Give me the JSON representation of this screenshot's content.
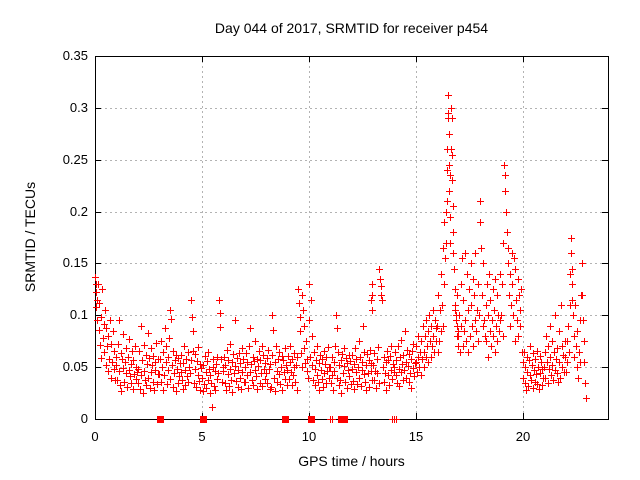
{
  "chart_data": {
    "type": "scatter",
    "title": "Day 044 of 2017, SRMTID for receiver p454",
    "xlabel": "GPS time / hours",
    "ylabel": "SRMTID / TECUs",
    "xlim": [
      0,
      24
    ],
    "ylim": [
      0,
      0.35
    ],
    "xticks": [
      0,
      5,
      10,
      15,
      20
    ],
    "yticks": [
      0,
      0.05,
      0.1,
      0.15,
      0.2,
      0.25,
      0.3,
      0.35
    ],
    "xtick_labels": [
      "0",
      "5",
      "10",
      "15",
      "20"
    ],
    "ytick_labels": [
      "0",
      "0.05",
      "0.1",
      "0.15",
      "0.2",
      "0.25",
      "0.3",
      "0.35"
    ],
    "grid": true,
    "legend": "none",
    "marker": "plus",
    "marker_color": "#ff0000",
    "grid_color": "#b3b3b3",
    "border_color": "#000000",
    "x_offsets": [
      0,
      0.03,
      0.07,
      0.1,
      0.13,
      0.17,
      0.2,
      0.23,
      0.27,
      0.3,
      0.33,
      0.37,
      0.4,
      0.43,
      0.47,
      0.5,
      0.53,
      0.57,
      0.6,
      0.63,
      0.67,
      0.7,
      0.73,
      0.77,
      0.8,
      0.83,
      0.87,
      0.9,
      0.93,
      0.97
    ],
    "hourly_y": {
      "0": [
        0.137,
        0.122,
        0.108,
        0.095,
        0.13,
        0.086,
        0.112,
        0.071,
        0.098,
        0.059,
        0.125,
        0.078,
        0.092,
        0.065,
        0.105,
        0.052,
        0.088,
        0.07,
        0.046,
        0.08,
        0.058,
        0.095,
        0.04,
        0.072,
        0.055,
        0.085,
        0.048,
        0.066,
        0.038,
        0.06
      ],
      "1": [
        0.052,
        0.038,
        0.072,
        0.046,
        0.095,
        0.033,
        0.064,
        0.027,
        0.058,
        0.049,
        0.082,
        0.036,
        0.055,
        0.044,
        0.068,
        0.031,
        0.06,
        0.047,
        0.077,
        0.041,
        0.053,
        0.035,
        0.066,
        0.029,
        0.057,
        0.043,
        0.07,
        0.039,
        0.05,
        0.045
      ],
      "2": [
        0.048,
        0.035,
        0.066,
        0.029,
        0.09,
        0.042,
        0.057,
        0.025,
        0.071,
        0.046,
        0.038,
        0.062,
        0.033,
        0.053,
        0.083,
        0.04,
        0.059,
        0.03,
        0.068,
        0.045,
        0.052,
        0.036,
        0.061,
        0.028,
        0.055,
        0.047,
        0.073,
        0.034,
        0.058,
        0.043
      ],
      "3": [
        0.043,
        0.058,
        0.036,
        0.075,
        0.05,
        0.028,
        0.065,
        0.042,
        0.088,
        0.055,
        0.07,
        0.034,
        0.06,
        0.047,
        0.078,
        0.039,
        0.105,
        0.096,
        0.052,
        0.031,
        0.066,
        0.044,
        0.057,
        0.027,
        0.062,
        0.048,
        0.035,
        0.059,
        0.041,
        0.054
      ],
      "4": [
        0.045,
        0.062,
        0.038,
        0.054,
        0.029,
        0.07,
        0.047,
        0.033,
        0.058,
        0.041,
        0.065,
        0.036,
        0.05,
        0.044,
        0.057,
        0.115,
        0.098,
        0.085,
        0.066,
        0.035,
        0.063,
        0.048,
        0.031,
        0.056,
        0.042,
        0.069,
        0.037,
        0.053,
        0.028,
        0.049
      ],
      "5": [
        0.04,
        0.027,
        0.052,
        0.034,
        0.061,
        0.045,
        0.03,
        0.056,
        0.038,
        0.065,
        0.048,
        0.025,
        0.042,
        0.035,
        0.012,
        0.05,
        0.058,
        0.032,
        0.046,
        0.028,
        0.053,
        0.039,
        0.06,
        0.044,
        0.115,
        0.102,
        0.089,
        0.058,
        0.036,
        0.05
      ],
      "6": [
        0.046,
        0.06,
        0.035,
        0.052,
        0.028,
        0.067,
        0.043,
        0.057,
        0.032,
        0.048,
        0.072,
        0.038,
        0.055,
        0.026,
        0.063,
        0.044,
        0.095,
        0.051,
        0.037,
        0.059,
        0.047,
        0.031,
        0.064,
        0.04,
        0.054,
        0.029,
        0.068,
        0.045,
        0.058,
        0.036
      ],
      "7": [
        0.05,
        0.036,
        0.064,
        0.042,
        0.055,
        0.03,
        0.07,
        0.045,
        0.088,
        0.053,
        0.038,
        0.06,
        0.033,
        0.056,
        0.047,
        0.075,
        0.041,
        0.058,
        0.029,
        0.051,
        0.066,
        0.035,
        0.057,
        0.044,
        0.07,
        0.032,
        0.062,
        0.048,
        0.039,
        0.054
      ],
      "8": [
        0.044,
        0.059,
        0.035,
        0.067,
        0.048,
        0.029,
        0.053,
        0.031,
        0.062,
        0.1,
        0.086,
        0.04,
        0.055,
        0.027,
        0.07,
        0.046,
        0.036,
        0.058,
        0.043,
        0.065,
        0.034,
        0.05,
        0.061,
        0.028,
        0.057,
        0.045,
        0.068,
        0.039,
        0.052,
        0.033
      ],
      "9": [
        0.047,
        0.061,
        0.039,
        0.055,
        0.07,
        0.045,
        0.033,
        0.058,
        0.042,
        0.05,
        0.064,
        0.036,
        0.052,
        0.028,
        0.06,
        0.125,
        0.112,
        0.098,
        0.085,
        0.064,
        0.05,
        0.12,
        0.105,
        0.09,
        0.068,
        0.054,
        0.075,
        0.046,
        0.058,
        0.04
      ],
      "10": [
        0.13,
        0.095,
        0.06,
        0.115,
        0.08,
        0.052,
        0.038,
        0.065,
        0.048,
        0.033,
        0.057,
        0.042,
        0.07,
        0.036,
        0.054,
        0.028,
        0.062,
        0.047,
        0.039,
        0.058,
        0.031,
        0.066,
        0.044,
        0.053,
        0.035,
        0.06,
        0.046,
        0.069,
        0.04,
        0.05
      ],
      "11": [
        0.05,
        0.035,
        0.06,
        0.042,
        0.028,
        0.055,
        0.046,
        0.07,
        0.1,
        0.088,
        0.04,
        0.065,
        0.033,
        0.052,
        0.038,
        0.057,
        0.025,
        0.063,
        0.044,
        0.051,
        0.068,
        0.036,
        0.059,
        0.03,
        0.054,
        0.047,
        0.062,
        0.041,
        0.056,
        0.034
      ],
      "12": [
        0.048,
        0.062,
        0.037,
        0.053,
        0.029,
        0.068,
        0.045,
        0.058,
        0.034,
        0.05,
        0.075,
        0.04,
        0.06,
        0.032,
        0.055,
        0.047,
        0.09,
        0.043,
        0.065,
        0.036,
        0.052,
        0.028,
        0.063,
        0.044,
        0.057,
        0.031,
        0.067,
        0.046,
        0.054,
        0.038
      ],
      "13": [
        0.052,
        0.038,
        0.064,
        0.046,
        0.03,
        0.058,
        0.044,
        0.069,
        0.035,
        0.145,
        0.135,
        0.128,
        0.12,
        0.115,
        0.05,
        0.036,
        0.06,
        0.044,
        0.055,
        0.028,
        0.066,
        0.042,
        0.057,
        0.033,
        0.061,
        0.047,
        0.07,
        0.039,
        0.053,
        0.045
      ],
      "14": [
        0.05,
        0.065,
        0.042,
        0.057,
        0.035,
        0.07,
        0.048,
        0.032,
        0.06,
        0.045,
        0.076,
        0.053,
        0.038,
        0.062,
        0.047,
        0.085,
        0.055,
        0.04,
        0.067,
        0.051,
        0.036,
        0.063,
        0.044,
        0.058,
        0.03,
        0.066,
        0.049,
        0.072,
        0.041,
        0.054
      ],
      "15": [
        0.055,
        0.07,
        0.045,
        0.06,
        0.08,
        0.05,
        0.065,
        0.042,
        0.075,
        0.058,
        0.09,
        0.065,
        0.05,
        0.08,
        0.06,
        0.095,
        0.07,
        0.055,
        0.085,
        0.1,
        0.075,
        0.06,
        0.09,
        0.07,
        0.105,
        0.08,
        0.065,
        0.095,
        0.075,
        0.088
      ],
      "17": [
        0.08,
        0.1,
        0.065,
        0.13,
        0.09,
        0.155,
        0.07,
        0.115,
        0.085,
        0.16,
        0.095,
        0.075,
        0.14,
        0.105,
        0.065,
        0.125,
        0.08,
        0.15,
        0.11,
        0.09,
        0.135,
        0.07,
        0.12,
        0.095,
        0.16,
        0.085,
        0.105,
        0.075,
        0.13,
        0.1
      ],
      "18": [
        0.21,
        0.19,
        0.165,
        0.12,
        0.09,
        0.15,
        0.095,
        0.08,
        0.11,
        0.075,
        0.13,
        0.1,
        0.06,
        0.14,
        0.085,
        0.115,
        0.07,
        0.095,
        0.125,
        0.08,
        0.105,
        0.065,
        0.135,
        0.09,
        0.12,
        0.075,
        0.1,
        0.085,
        0.14,
        0.095
      ],
      "19": [
        0.1,
        0.13,
        0.08,
        0.17,
        0.245,
        0.235,
        0.22,
        0.2,
        0.18,
        0.165,
        0.15,
        0.12,
        0.09,
        0.14,
        0.11,
        0.16,
        0.13,
        0.1,
        0.155,
        0.075,
        0.145,
        0.115,
        0.095,
        0.135,
        0.08,
        0.12,
        0.09,
        0.105,
        0.125,
        0.065
      ],
      "20": [
        0.055,
        0.04,
        0.065,
        0.035,
        0.05,
        0.028,
        0.06,
        0.045,
        0.032,
        0.057,
        0.042,
        0.07,
        0.038,
        0.052,
        0.03,
        0.064,
        0.047,
        0.036,
        0.058,
        0.043,
        0.066,
        0.034,
        0.05,
        0.029,
        0.061,
        0.044,
        0.055,
        0.033,
        0.048,
        0.04
      ],
      "21": [
        0.05,
        0.065,
        0.04,
        0.08,
        0.055,
        0.035,
        0.07,
        0.048,
        0.09,
        0.06,
        0.042,
        0.075,
        0.052,
        0.038,
        0.065,
        0.047,
        0.1,
        0.058,
        0.044,
        0.068,
        0.036,
        0.085,
        0.055,
        0.04,
        0.11,
        0.07,
        0.05,
        0.062,
        0.045,
        0.075
      ]
    },
    "extra_points": [
      [
        0.04,
        0.13
      ],
      [
        0.08,
        0.115
      ],
      [
        12.93,
        0.115
      ],
      [
        12.95,
        0.13
      ],
      [
        12.97,
        0.12
      ],
      [
        12.95,
        0.105
      ],
      [
        16.02,
        0.09
      ],
      [
        16.05,
        0.065
      ],
      [
        16.07,
        0.12
      ],
      [
        16.1,
        0.075
      ],
      [
        16.13,
        0.105
      ],
      [
        16.17,
        0.14
      ],
      [
        16.2,
        0.085
      ],
      [
        16.23,
        0.11
      ],
      [
        16.27,
        0.09
      ],
      [
        16.3,
        0.165
      ],
      [
        16.32,
        0.19
      ],
      [
        16.33,
        0.13
      ],
      [
        16.37,
        0.155
      ],
      [
        16.4,
        0.2
      ],
      [
        16.42,
        0.17
      ],
      [
        16.45,
        0.24
      ],
      [
        16.47,
        0.26
      ],
      [
        16.48,
        0.21
      ],
      [
        16.5,
        0.312
      ],
      [
        16.52,
        0.295
      ],
      [
        16.53,
        0.29
      ],
      [
        16.55,
        0.275
      ],
      [
        16.56,
        0.245
      ],
      [
        16.58,
        0.22
      ],
      [
        16.6,
        0.235
      ],
      [
        16.62,
        0.195
      ],
      [
        16.63,
        0.17
      ],
      [
        16.65,
        0.26
      ],
      [
        16.67,
        0.3
      ],
      [
        16.68,
        0.29
      ],
      [
        16.7,
        0.255
      ],
      [
        16.72,
        0.23
      ],
      [
        16.73,
        0.205
      ],
      [
        16.75,
        0.18
      ],
      [
        16.77,
        0.16
      ],
      [
        16.8,
        0.145
      ],
      [
        16.82,
        0.125
      ],
      [
        16.83,
        0.105
      ],
      [
        16.85,
        0.11
      ],
      [
        16.87,
        0.095
      ],
      [
        16.9,
        0.1
      ],
      [
        16.92,
        0.12
      ],
      [
        16.93,
        0.08
      ],
      [
        16.95,
        0.09
      ],
      [
        16.97,
        0.085
      ],
      [
        16.98,
        0.07
      ],
      [
        22.0,
        0.06
      ],
      [
        22.03,
        0.045
      ],
      [
        22.07,
        0.075
      ],
      [
        22.1,
        0.055
      ],
      [
        22.13,
        0.09
      ],
      [
        22.17,
        0.065
      ],
      [
        22.2,
        0.11
      ],
      [
        22.23,
        0.14
      ],
      [
        22.25,
        0.175
      ],
      [
        22.27,
        0.16
      ],
      [
        22.3,
        0.145
      ],
      [
        22.32,
        0.13
      ],
      [
        22.33,
        0.115
      ],
      [
        22.37,
        0.1
      ],
      [
        22.4,
        0.08
      ],
      [
        22.43,
        0.06
      ],
      [
        22.47,
        0.11
      ],
      [
        22.5,
        0.07
      ],
      [
        22.53,
        0.05
      ],
      [
        22.57,
        0.085
      ],
      [
        22.6,
        0.04
      ],
      [
        22.63,
        0.065
      ],
      [
        22.67,
        0.095
      ],
      [
        22.7,
        0.055
      ],
      [
        22.73,
        0.12
      ],
      [
        22.77,
        0.15
      ],
      [
        22.8,
        0.12
      ],
      [
        22.83,
        0.095
      ],
      [
        22.87,
        0.075
      ],
      [
        22.9,
        0.055
      ],
      [
        22.93,
        0.035
      ],
      [
        22.95,
        0.02
      ],
      [
        11.0,
        0
      ],
      [
        11.07,
        0
      ],
      [
        13.9,
        0
      ],
      [
        14.0,
        0
      ],
      [
        14.07,
        0
      ]
    ],
    "zero_squares": [
      3.05,
      5.05,
      8.9,
      10.1,
      11.5,
      11.65
    ]
  }
}
